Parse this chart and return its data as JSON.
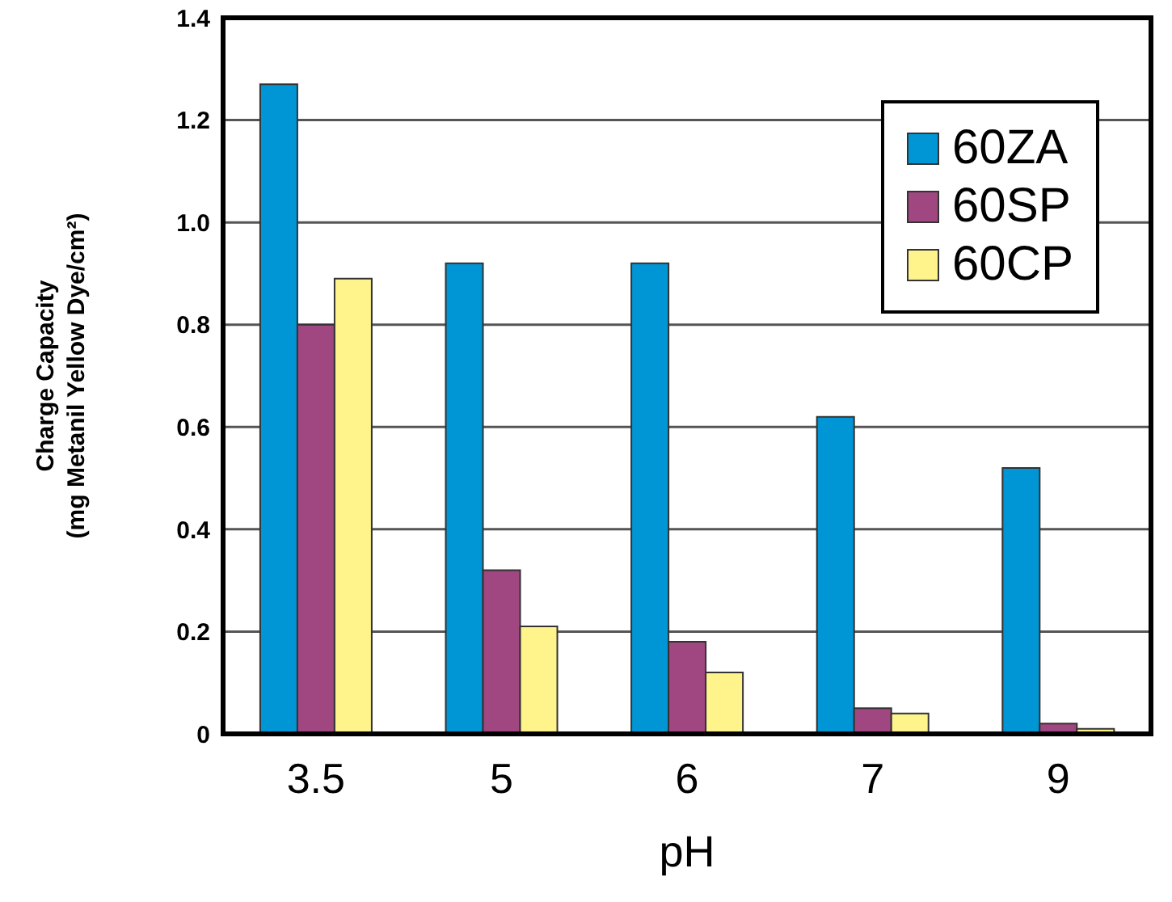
{
  "chart_data": {
    "type": "bar",
    "xlabel": "pH",
    "ylabel": "Charge Capacity\n(mg Metanil Yellow Dye/cm²)",
    "categories": [
      "3.5",
      "5",
      "6",
      "7",
      "9"
    ],
    "series": [
      {
        "name": "60ZA",
        "color": "#0096d6",
        "values": [
          1.27,
          0.92,
          0.92,
          0.62,
          0.52
        ]
      },
      {
        "name": "60SP",
        "color": "#a04680",
        "values": [
          0.8,
          0.32,
          0.18,
          0.05,
          0.02
        ]
      },
      {
        "name": "60CP",
        "color": "#fff48c",
        "values": [
          0.89,
          0.21,
          0.12,
          0.04,
          0.01
        ]
      }
    ],
    "ylim": [
      0,
      1.4
    ],
    "yticks": [
      0,
      0.2,
      0.4,
      0.6,
      0.8,
      {
        "value": 1,
        "label": "1.0"
      },
      1.2,
      1.4
    ],
    "grid": "y",
    "legend": "top right"
  }
}
